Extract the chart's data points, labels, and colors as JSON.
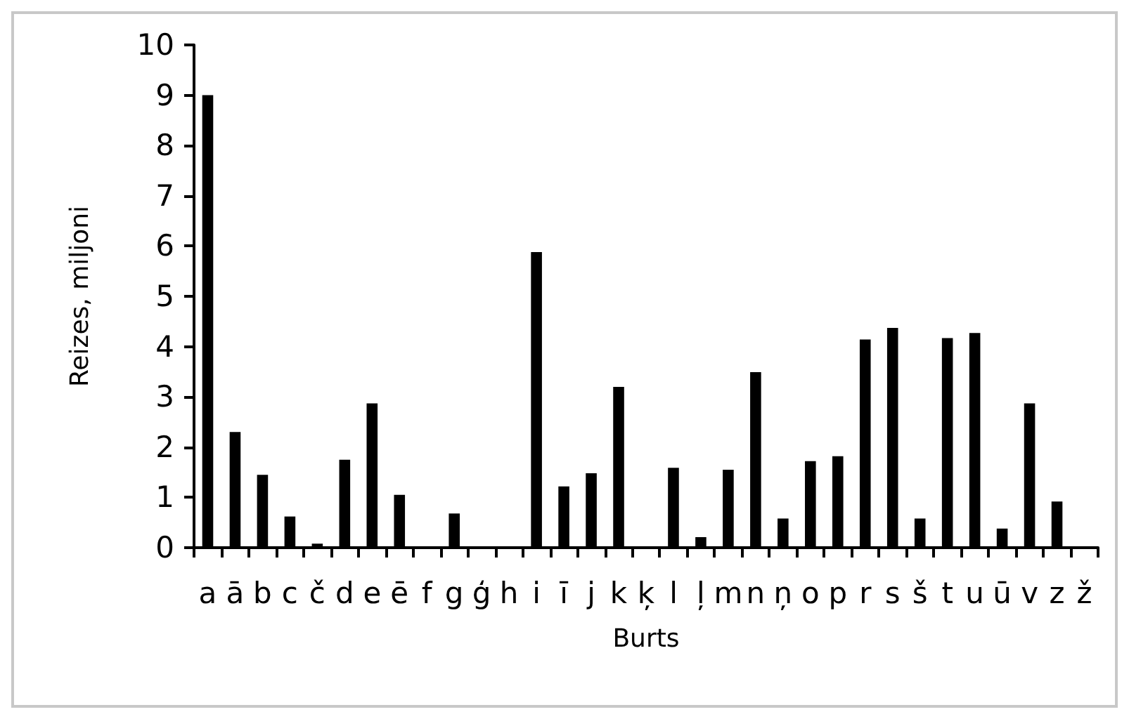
{
  "chart_data": {
    "type": "bar",
    "xlabel": "Burts",
    "ylabel": "Reizes, miljoni",
    "categories": [
      "a",
      "ā",
      "b",
      "c",
      "č",
      "d",
      "e",
      "ē",
      "f",
      "g",
      "ģ",
      "h",
      "i",
      "ī",
      "j",
      "k",
      "ķ",
      "l",
      "ļ",
      "m",
      "n",
      "ņ",
      "o",
      "p",
      "r",
      "s",
      "š",
      "t",
      "u",
      "ū",
      "v",
      "z",
      "ž"
    ],
    "values": [
      9.0,
      2.3,
      1.45,
      0.62,
      0.08,
      1.75,
      2.87,
      1.05,
      0,
      0.68,
      0,
      0,
      5.88,
      1.22,
      1.48,
      3.2,
      0,
      1.59,
      0.21,
      1.55,
      3.49,
      0.58,
      1.72,
      1.82,
      4.14,
      4.37,
      0.58,
      4.17,
      4.27,
      0.38,
      2.87,
      0.92,
      0
    ],
    "color": "#000000",
    "ylim": [
      0,
      10
    ],
    "yticks": [
      0,
      1,
      2,
      3,
      4,
      5,
      6,
      7,
      8,
      9,
      10
    ],
    "grid": false
  }
}
